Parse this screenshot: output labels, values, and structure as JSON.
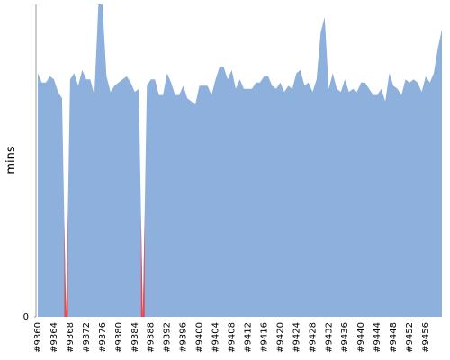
{
  "chart_data": {
    "type": "area",
    "y_label": "mins",
    "categories": [
      "#9360",
      null,
      null,
      null,
      "#9364",
      null,
      null,
      null,
      "#9368",
      null,
      null,
      null,
      "#9372",
      null,
      null,
      null,
      "#9376",
      null,
      null,
      null,
      "#9380",
      null,
      null,
      null,
      "#9384",
      null,
      null,
      null,
      "#9388",
      null,
      null,
      null,
      "#9392",
      null,
      null,
      null,
      "#9396",
      null,
      null,
      null,
      "#9400",
      null,
      null,
      null,
      "#9404",
      null,
      null,
      null,
      "#9408",
      null,
      null,
      null,
      "#9412",
      null,
      null,
      null,
      "#9416",
      null,
      null,
      null,
      "#9420",
      null,
      null,
      null,
      "#9424",
      null,
      null,
      null,
      "#9428",
      null,
      null,
      null,
      "#9432",
      null,
      null,
      null,
      "#9436",
      null,
      null,
      null,
      "#9440",
      null,
      null,
      null,
      "#9444",
      null,
      null,
      null,
      "#9448",
      null,
      null,
      null,
      "#9452",
      null,
      null,
      null,
      "#9456",
      null,
      null,
      null,
      null
    ],
    "values": [
      78,
      75,
      75,
      77,
      76,
      72,
      70,
      0,
      76,
      78,
      74,
      79,
      76,
      76,
      71,
      100,
      100,
      77,
      72,
      74,
      75,
      76,
      77,
      75,
      72,
      73,
      0,
      74,
      76,
      76,
      71,
      71,
      78,
      75,
      71,
      71,
      74,
      70,
      69,
      68,
      74,
      74,
      74,
      71,
      76,
      80,
      80,
      76,
      79,
      73,
      76,
      73,
      73,
      73,
      75,
      75,
      77,
      77,
      74,
      73,
      75,
      72,
      74,
      73,
      78,
      79,
      74,
      75,
      72,
      76,
      91,
      96,
      73,
      78,
      73,
      72,
      76,
      72,
      73,
      72,
      75,
      75,
      73,
      71,
      71,
      73,
      69,
      78,
      74,
      73,
      71,
      76,
      75,
      76,
      75,
      72,
      77,
      75,
      78,
      86,
      92
    ],
    "color": "#8eb0dc",
    "failure_color": "#e8484a",
    "ylim": [
      0,
      100
    ],
    "yticks": [
      0
    ]
  }
}
